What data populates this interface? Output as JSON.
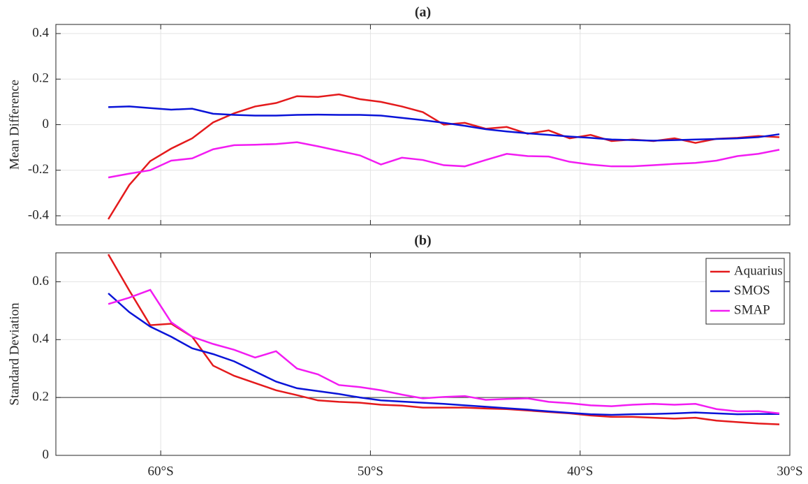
{
  "chart_data": [
    {
      "type": "line",
      "title": "(a)",
      "ylabel": "Mean Difference",
      "x": [
        -62.5,
        -61.5,
        -60.5,
        -59.5,
        -58.5,
        -57.5,
        -56.5,
        -55.5,
        -54.5,
        -53.5,
        -52.5,
        -51.5,
        -50.5,
        -49.5,
        -48.5,
        -47.5,
        -46.5,
        -45.5,
        -44.5,
        -43.5,
        -42.5,
        -41.5,
        -40.5,
        -39.5,
        -38.5,
        -37.5,
        -36.5,
        -35.5,
        -34.5,
        -33.5,
        -32.5,
        -31.5,
        -30.5
      ],
      "series": [
        {
          "name": "Aquarius",
          "color": "#e41a1c",
          "values": [
            -0.415,
            -0.265,
            -0.16,
            -0.105,
            -0.06,
            0.01,
            0.05,
            0.08,
            0.095,
            0.125,
            0.122,
            0.133,
            0.112,
            0.1,
            0.08,
            0.055,
            0.0,
            0.008,
            -0.018,
            -0.01,
            -0.04,
            -0.025,
            -0.06,
            -0.045,
            -0.072,
            -0.065,
            -0.072,
            -0.06,
            -0.08,
            -0.062,
            -0.058,
            -0.05,
            -0.055
          ]
        },
        {
          "name": "SMOS",
          "color": "#0a14d8",
          "values": [
            0.077,
            0.08,
            0.073,
            0.066,
            0.07,
            0.048,
            0.043,
            0.04,
            0.04,
            0.043,
            0.044,
            0.043,
            0.043,
            0.04,
            0.03,
            0.02,
            0.008,
            -0.005,
            -0.02,
            -0.03,
            -0.038,
            -0.045,
            -0.052,
            -0.058,
            -0.065,
            -0.068,
            -0.07,
            -0.068,
            -0.065,
            -0.063,
            -0.06,
            -0.055,
            -0.042
          ]
        },
        {
          "name": "SMAP",
          "color": "#f21cf2",
          "values": [
            -0.232,
            -0.215,
            -0.2,
            -0.158,
            -0.148,
            -0.108,
            -0.09,
            -0.088,
            -0.085,
            -0.077,
            -0.095,
            -0.115,
            -0.135,
            -0.175,
            -0.145,
            -0.155,
            -0.178,
            -0.183,
            -0.155,
            -0.128,
            -0.138,
            -0.14,
            -0.163,
            -0.175,
            -0.183,
            -0.183,
            -0.178,
            -0.172,
            -0.168,
            -0.158,
            -0.138,
            -0.128,
            -0.11
          ]
        }
      ],
      "xlim": [
        -65,
        -30
      ],
      "xticks": [
        -60,
        -50,
        -40,
        -30
      ],
      "ylim": [
        -0.44,
        0.44
      ],
      "yticks": [
        0.4,
        0.2,
        0,
        -0.2,
        -0.4
      ],
      "grid": true
    },
    {
      "type": "line",
      "title": "(b)",
      "ylabel": "Standard Deviation",
      "x": [
        -62.5,
        -61.5,
        -60.5,
        -59.5,
        -58.5,
        -57.5,
        -56.5,
        -55.5,
        -54.5,
        -53.5,
        -52.5,
        -51.5,
        -50.5,
        -49.5,
        -48.5,
        -47.5,
        -46.5,
        -45.5,
        -44.5,
        -43.5,
        -42.5,
        -41.5,
        -40.5,
        -39.5,
        -38.5,
        -37.5,
        -36.5,
        -35.5,
        -34.5,
        -33.5,
        -32.5,
        -31.5,
        -30.5
      ],
      "series": [
        {
          "name": "Aquarius",
          "color": "#e41a1c",
          "values": [
            0.695,
            0.57,
            0.45,
            0.455,
            0.41,
            0.31,
            0.275,
            0.25,
            0.225,
            0.208,
            0.19,
            0.185,
            0.182,
            0.175,
            0.172,
            0.165,
            0.165,
            0.165,
            0.162,
            0.16,
            0.155,
            0.15,
            0.145,
            0.138,
            0.133,
            0.133,
            0.13,
            0.127,
            0.13,
            0.12,
            0.115,
            0.11,
            0.107
          ]
        },
        {
          "name": "SMOS",
          "color": "#0a14d8",
          "values": [
            0.56,
            0.495,
            0.445,
            0.41,
            0.37,
            0.35,
            0.325,
            0.29,
            0.255,
            0.232,
            0.222,
            0.212,
            0.2,
            0.19,
            0.186,
            0.182,
            0.178,
            0.173,
            0.168,
            0.163,
            0.158,
            0.152,
            0.147,
            0.142,
            0.14,
            0.142,
            0.143,
            0.145,
            0.148,
            0.145,
            0.142,
            0.143,
            0.143
          ]
        },
        {
          "name": "SMAP",
          "color": "#f21cf2",
          "values": [
            0.523,
            0.545,
            0.572,
            0.46,
            0.41,
            0.385,
            0.365,
            0.338,
            0.36,
            0.3,
            0.28,
            0.243,
            0.236,
            0.225,
            0.21,
            0.197,
            0.202,
            0.205,
            0.192,
            0.195,
            0.197,
            0.185,
            0.18,
            0.173,
            0.17,
            0.175,
            0.178,
            0.175,
            0.178,
            0.16,
            0.152,
            0.153,
            0.145
          ]
        }
      ],
      "xlim": [
        -65,
        -30
      ],
      "xticks": [
        {
          "value": -60,
          "label": "60°S"
        },
        {
          "value": -50,
          "label": "50°S"
        },
        {
          "value": -40,
          "label": "40°S"
        },
        {
          "value": -30,
          "label": "30°S"
        }
      ],
      "ylim": [
        0,
        0.7
      ],
      "yticks": [
        0,
        0.2,
        0.4,
        0.6
      ],
      "grid": true,
      "reference_line": 0.2,
      "legend": "upper right"
    }
  ]
}
